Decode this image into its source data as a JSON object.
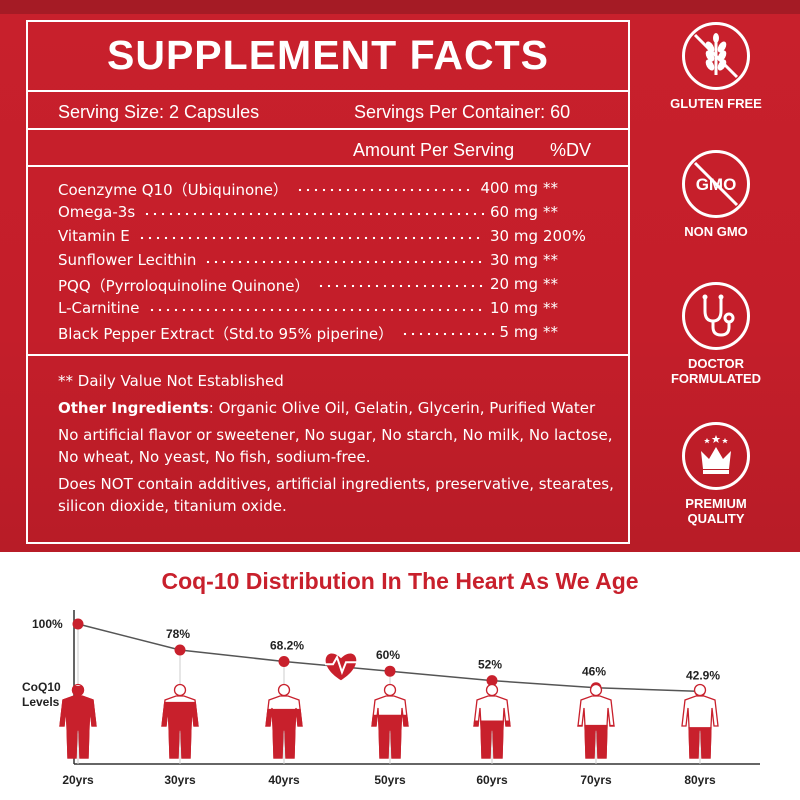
{
  "facts": {
    "title": "SUPPLEMENT FACTS",
    "serving_size": "Serving Size: 2 Capsules",
    "servings_per_container": "Servings Per Container: 60",
    "amount_header": "Amount Per Serving",
    "dv_header": "%DV",
    "ingredients": [
      {
        "name": "Coenzyme Q10（Ubiquinone）",
        "amount": "400 mg",
        "dv": "**"
      },
      {
        "name": "Omega-3s",
        "amount": "60 mg",
        "dv": "**"
      },
      {
        "name": "Vitamin E",
        "amount": "30 mg",
        "dv": "200%"
      },
      {
        "name": "Sunflower Lecithin",
        "amount": "30 mg",
        "dv": "**"
      },
      {
        "name": "PQQ（Pyrroloquinoline Quinone）",
        "amount": "20 mg",
        "dv": "**"
      },
      {
        "name": "L-Carnitine",
        "amount": "10 mg",
        "dv": "**"
      },
      {
        "name": "Black Pepper Extract（Std.to 95% piperine）",
        "amount": "5 mg",
        "dv": "**"
      }
    ],
    "note_dv": "** Daily Value Not Established",
    "other_label": "Other Ingredients",
    "other_value": ": Organic Olive Oil, Gelatin, Glycerin, Purified Water",
    "free_from": "No artificial flavor or sweetener, No sugar, No starch, No milk, No lactose, No wheat, No yeast, No fish, sodium-free.",
    "no_additives": "Does NOT contain additives, artificial ingredients, preservative, stearates, silicon dioxide, titanium oxide."
  },
  "badges": [
    {
      "icon": "wheat-crossed-icon",
      "label": "GLUTEN FREE"
    },
    {
      "icon": "gmo-crossed-icon",
      "label": "NON GMO",
      "icon_text": "GMO"
    },
    {
      "icon": "stethoscope-icon",
      "label": "DOCTOR FORMULATED"
    },
    {
      "icon": "crown-icon",
      "label": "PREMIUM QUALITY"
    }
  ],
  "chart_data": {
    "type": "line",
    "title": "Coq-10 Distribution In The Heart As We Age",
    "ylabel": "CoQ10 Levels",
    "categories": [
      "20yrs",
      "30yrs",
      "40yrs",
      "50yrs",
      "60yrs",
      "70yrs",
      "80yrs"
    ],
    "values": [
      100,
      78,
      68.2,
      60,
      52,
      46,
      42.9
    ],
    "value_labels": [
      "100%",
      "78%",
      "68.2%",
      "60%",
      "52%",
      "46%",
      "42.9%"
    ],
    "fill_fraction": [
      1.0,
      0.78,
      0.682,
      0.6,
      0.52,
      0.46,
      0.429
    ],
    "colors": {
      "line": "#555555",
      "marker": "#c8202c",
      "figure": "#c8202c"
    }
  }
}
